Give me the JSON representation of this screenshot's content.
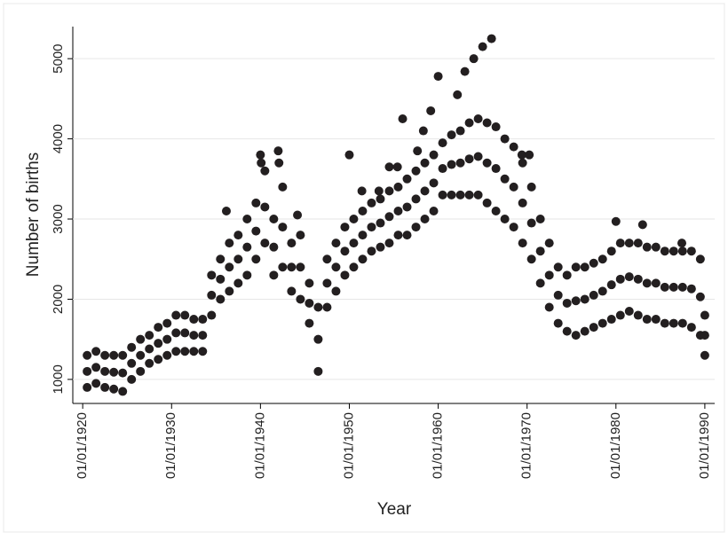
{
  "chart_data": {
    "type": "scatter",
    "xlabel": "Year",
    "ylabel": "Number of births",
    "color": "#231f20",
    "xlim": [
      "1918-11-20",
      "1991-02-10"
    ],
    "ylim": [
      700,
      5400
    ],
    "xticks": [
      {
        "value": "1920-01-01",
        "label": "01/01/1920"
      },
      {
        "value": "1930-01-01",
        "label": "01/01/1930"
      },
      {
        "value": "1940-01-01",
        "label": "01/01/1940"
      },
      {
        "value": "1950-01-01",
        "label": "01/01/1950"
      },
      {
        "value": "1960-01-01",
        "label": "01/01/1960"
      },
      {
        "value": "1970-01-01",
        "label": "01/01/1970"
      },
      {
        "value": "1980-01-01",
        "label": "01/01/1980"
      },
      {
        "value": "1990-01-01",
        "label": "01/01/1990"
      }
    ],
    "yticks": [
      1000,
      2000,
      3000,
      4000,
      5000
    ],
    "grid": true,
    "x": [
      "1920-07-01",
      "1920-07-01",
      "1920-07-01",
      "1921-07-01",
      "1921-07-01",
      "1921-07-01",
      "1922-07-01",
      "1922-07-01",
      "1922-07-01",
      "1923-07-01",
      "1923-07-01",
      "1923-07-01",
      "1924-07-01",
      "1924-07-01",
      "1924-07-01",
      "1925-07-01",
      "1925-07-01",
      "1925-07-01",
      "1926-07-01",
      "1926-07-01",
      "1926-07-01",
      "1927-07-01",
      "1927-07-01",
      "1927-07-01",
      "1928-07-01",
      "1928-07-01",
      "1928-07-01",
      "1929-07-01",
      "1929-07-01",
      "1929-07-01",
      "1930-07-01",
      "1930-07-01",
      "1930-07-01",
      "1931-07-01",
      "1931-07-01",
      "1931-07-01",
      "1932-07-01",
      "1932-07-01",
      "1932-07-01",
      "1933-07-01",
      "1933-07-01",
      "1933-07-01",
      "1934-07-01",
      "1934-07-01",
      "1934-07-01",
      "1935-07-01",
      "1935-07-01",
      "1935-07-01",
      "1936-07-01",
      "1936-07-01",
      "1936-07-01",
      "1937-07-01",
      "1937-07-01",
      "1937-07-01",
      "1938-07-01",
      "1938-07-01",
      "1938-07-01",
      "1939-07-01",
      "1939-07-01",
      "1939-07-01",
      "1940-07-01",
      "1940-07-01",
      "1940-07-01",
      "1941-07-01",
      "1941-07-01",
      "1941-07-01",
      "1942-07-01",
      "1942-07-01",
      "1942-07-01",
      "1943-07-01",
      "1943-07-01",
      "1943-07-01",
      "1944-07-01",
      "1944-07-01",
      "1944-07-01",
      "1945-07-01",
      "1945-07-01",
      "1945-07-01",
      "1946-07-01",
      "1946-07-01",
      "1946-07-01",
      "1947-07-01",
      "1947-07-01",
      "1947-07-01",
      "1948-07-01",
      "1948-07-01",
      "1948-07-01",
      "1949-07-01",
      "1949-07-01",
      "1949-07-01",
      "1950-07-01",
      "1950-07-01",
      "1950-07-01",
      "1951-07-01",
      "1951-07-01",
      "1951-07-01",
      "1952-07-01",
      "1952-07-01",
      "1952-07-01",
      "1953-07-01",
      "1953-07-01",
      "1953-07-01",
      "1954-07-01",
      "1954-07-01",
      "1954-07-01",
      "1955-07-01",
      "1955-07-01",
      "1955-07-01",
      "1956-07-01",
      "1956-07-01",
      "1956-07-01",
      "1957-07-01",
      "1957-07-01",
      "1957-07-01",
      "1958-07-01",
      "1958-07-01",
      "1958-07-01",
      "1959-07-01",
      "1959-07-01",
      "1959-07-01",
      "1960-07-01",
      "1960-07-01",
      "1960-07-01",
      "1961-07-01",
      "1961-07-01",
      "1961-07-01",
      "1962-07-01",
      "1962-07-01",
      "1962-07-01",
      "1963-07-01",
      "1963-07-01",
      "1963-07-01",
      "1964-07-01",
      "1964-07-01",
      "1964-07-01",
      "1965-07-01",
      "1965-07-01",
      "1965-07-01",
      "1966-07-01",
      "1966-07-01",
      "1966-07-01",
      "1967-07-01",
      "1967-07-01",
      "1967-07-01",
      "1968-07-01",
      "1968-07-01",
      "1968-07-01",
      "1969-07-01",
      "1969-07-01",
      "1969-07-01",
      "1970-07-01",
      "1970-07-01",
      "1970-07-01",
      "1971-07-01",
      "1971-07-01",
      "1971-07-01",
      "1972-07-01",
      "1972-07-01",
      "1972-07-01",
      "1973-07-01",
      "1973-07-01",
      "1973-07-01",
      "1974-07-01",
      "1974-07-01",
      "1974-07-01",
      "1975-07-01",
      "1975-07-01",
      "1975-07-01",
      "1976-07-01",
      "1976-07-01",
      "1976-07-01",
      "1977-07-01",
      "1977-07-01",
      "1977-07-01",
      "1978-07-01",
      "1978-07-01",
      "1978-07-01",
      "1979-07-01",
      "1979-07-01",
      "1979-07-01",
      "1980-07-01",
      "1980-07-01",
      "1980-07-01",
      "1981-07-01",
      "1981-07-01",
      "1981-07-01",
      "1982-07-01",
      "1982-07-01",
      "1982-07-01",
      "1983-07-01",
      "1983-07-01",
      "1983-07-01",
      "1984-07-01",
      "1984-07-01",
      "1984-07-01",
      "1985-07-01",
      "1985-07-01",
      "1985-07-01",
      "1986-07-01",
      "1986-07-01",
      "1986-07-01",
      "1987-07-01",
      "1987-07-01",
      "1987-07-01",
      "1988-07-01",
      "1988-07-01",
      "1988-07-01",
      "1989-07-01",
      "1989-07-01",
      "1989-07-01",
      "1990-01-01",
      "1990-01-01",
      "1990-01-01",
      "1936-03-01",
      "1940-01-01",
      "1940-02-01",
      "1942-01-01",
      "1942-02-01",
      "1944-03-01",
      "1950-01-01",
      "1951-06-01",
      "1953-05-01",
      "1954-07-01",
      "1955-06-01",
      "1956-01-01",
      "1957-09-01",
      "1958-05-01",
      "1959-03-01",
      "1960-01-01",
      "1962-03-01",
      "1963-01-01",
      "1964-01-01",
      "1965-01-01",
      "1966-01-01",
      "1969-06-01",
      "1970-04-01",
      "1980-01-01",
      "1983-01-01",
      "1987-06-01"
    ],
    "values": [
      900,
      1100,
      1300,
      950,
      1150,
      1350,
      900,
      1100,
      1300,
      880,
      1090,
      1300,
      850,
      1080,
      1300,
      1000,
      1200,
      1400,
      1100,
      1300,
      1500,
      1200,
      1380,
      1550,
      1250,
      1450,
      1650,
      1300,
      1500,
      1700,
      1350,
      1580,
      1800,
      1350,
      1580,
      1800,
      1350,
      1550,
      1750,
      1350,
      1550,
      1750,
      1800,
      2050,
      2300,
      2000,
      2250,
      2500,
      2100,
      2400,
      2700,
      2200,
      2500,
      2800,
      2300,
      2650,
      3000,
      2500,
      2850,
      3200,
      2700,
      3150,
      3600,
      2300,
      2650,
      3000,
      2400,
      2900,
      3400,
      2100,
      2400,
      2700,
      2000,
      2400,
      2800,
      1700,
      1950,
      2200,
      1100,
      1500,
      1900,
      1900,
      2200,
      2500,
      2100,
      2400,
      2700,
      2300,
      2600,
      2900,
      2400,
      2700,
      3000,
      2500,
      2800,
      3100,
      2600,
      2900,
      3200,
      2650,
      2950,
      3250,
      2700,
      3030,
      3350,
      2800,
      3100,
      3400,
      2800,
      3150,
      3500,
      2900,
      3250,
      3600,
      3000,
      3350,
      3700,
      3100,
      3450,
      3800,
      3300,
      3630,
      3950,
      3300,
      3680,
      4050,
      3300,
      3700,
      4100,
      3300,
      3750,
      4200,
      3300,
      3780,
      4250,
      3200,
      3700,
      4200,
      3100,
      3630,
      4150,
      3000,
      3500,
      4000,
      2900,
      3400,
      3900,
      2700,
      3200,
      3700,
      2500,
      2950,
      3400,
      2200,
      2600,
      3000,
      1900,
      2300,
      2700,
      1700,
      2050,
      2400,
      1600,
      1950,
      2300,
      1550,
      1980,
      2400,
      1600,
      2000,
      2400,
      1650,
      2050,
      2450,
      1700,
      2100,
      2500,
      1750,
      2180,
      2600,
      1800,
      2250,
      2700,
      1850,
      2280,
      2700,
      1800,
      2250,
      2700,
      1750,
      2200,
      2650,
      1750,
      2200,
      2650,
      1700,
      2150,
      2600,
      1700,
      2150,
      2600,
      1700,
      2150,
      2600,
      1650,
      2130,
      2600,
      1550,
      2030,
      2500,
      1300,
      1550,
      1800,
      3100,
      3800,
      3700,
      3850,
      3700,
      3050,
      3800,
      3350,
      3350,
      3650,
      3650,
      4250,
      3850,
      4100,
      4350,
      4780,
      4550,
      4840,
      5000,
      5150,
      5250,
      3800,
      3800,
      2970,
      2930,
      2700
    ]
  }
}
